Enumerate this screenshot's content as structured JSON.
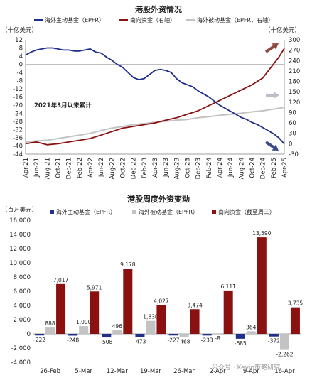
{
  "colors": {
    "navy": "#1f2f8a",
    "darkred": "#8b1010",
    "gray": "#c3c3c3",
    "neg_label": "#d0191b",
    "axis": "#7f7f7f"
  },
  "watermark": "公众号 · Kevin策略研究",
  "chart_data": [
    {
      "type": "line",
      "title": "港股外资情况",
      "left_unit": "（十亿美元）",
      "right_unit": "（十亿美元）",
      "annotation": "2021年3月以来累计",
      "legend": [
        "海外主动基金（EPFR）",
        "南向资金（右轴）",
        "海外被动基金（EPFR，右轴）"
      ],
      "x_ticks": [
        "Apr-21",
        "Jun-21",
        "Aug-21",
        "Oct-21",
        "Dec-21",
        "Feb-22",
        "Apr-22",
        "Jun-22",
        "Aug-22",
        "Oct-22",
        "Dec-22",
        "Feb-23",
        "Apr-23",
        "Jun-23",
        "Aug-23",
        "Oct-23",
        "Dec-23",
        "Feb-24",
        "Apr-24",
        "Jun-24",
        "Aug-24",
        "Oct-24",
        "Dec-24",
        "Feb-25",
        "Apr-25"
      ],
      "left_axis": {
        "min": -44,
        "max": 12,
        "ticks": [
          12,
          8,
          4,
          0,
          -4,
          -8,
          -12,
          -16,
          -20,
          -24,
          -28,
          -32,
          -36,
          -40,
          -44
        ]
      },
      "right_axis": {
        "min": -30,
        "max": 300,
        "ticks": [
          300,
          270,
          240,
          210,
          180,
          150,
          120,
          90,
          60,
          30,
          0,
          -30
        ]
      },
      "series": [
        {
          "name": "海外主动基金（EPFR）",
          "axis": "left",
          "color": "#1f2f8a",
          "t": [
            0,
            1,
            2,
            3,
            4,
            5,
            6,
            7,
            8,
            9,
            10,
            11,
            12,
            13,
            14,
            15,
            16,
            17,
            18,
            19,
            20,
            21,
            22,
            23,
            24,
            25,
            26,
            27,
            28,
            29,
            30,
            31,
            32,
            33,
            34,
            35,
            36,
            37,
            38,
            39,
            40,
            41,
            42,
            43,
            44,
            45,
            46,
            47,
            48
          ],
          "y": [
            4.5,
            6,
            7,
            7.5,
            8,
            8,
            7.5,
            7,
            7,
            6.5,
            6.5,
            7,
            7.5,
            6,
            5.5,
            3.5,
            2,
            0,
            -1.5,
            -4,
            -6.5,
            -7.5,
            -7,
            -5,
            -3,
            -2.5,
            -3,
            -4,
            -7,
            -9,
            -10,
            -11,
            -13,
            -14.5,
            -16,
            -18,
            -20,
            -21.5,
            -23,
            -24.5,
            -26,
            -27,
            -28.5,
            -29.5,
            -31,
            -32.5,
            -34,
            -36,
            -39
          ]
        },
        {
          "name": "南向资金（右轴）",
          "axis": "right",
          "color": "#8b1010",
          "t": [
            0,
            2,
            4,
            6,
            8,
            10,
            12,
            14,
            16,
            18,
            20,
            22,
            24,
            26,
            28,
            30,
            32,
            34,
            36,
            38,
            40,
            42,
            44,
            45,
            46,
            47,
            48
          ],
          "y": [
            0,
            5,
            -3,
            0,
            5,
            10,
            15,
            25,
            35,
            45,
            50,
            55,
            60,
            68,
            75,
            85,
            95,
            110,
            125,
            140,
            155,
            170,
            190,
            210,
            230,
            250,
            275
          ]
        },
        {
          "name": "海外被动基金（EPFR，右轴）",
          "axis": "right",
          "color": "#c3c3c3",
          "t": [
            0,
            2,
            4,
            6,
            8,
            10,
            12,
            14,
            16,
            18,
            20,
            22,
            24,
            26,
            28,
            30,
            32,
            34,
            36,
            38,
            40,
            42,
            44,
            46,
            48
          ],
          "y": [
            5,
            8,
            10,
            15,
            20,
            25,
            30,
            38,
            45,
            50,
            55,
            58,
            62,
            65,
            68,
            70,
            75,
            78,
            82,
            85,
            88,
            92,
            95,
            100,
            105
          ]
        }
      ]
    },
    {
      "type": "bar",
      "title": "港股周度外资变动",
      "unit": "（百万美元）",
      "legend": [
        "海外主动基金（EPFR）",
        "海外被动基金（EPFR）",
        "南向资金（截至周三）"
      ],
      "categories": [
        "26-Feb",
        "5-Mar",
        "12-Mar",
        "19-Mar",
        "26-Mar",
        "2-Apr",
        "9-Apr",
        "16-Apr"
      ],
      "ylim": [
        -4000,
        16000
      ],
      "y_ticks": [
        "16,000",
        "14,000",
        "12,000",
        "10,000",
        "8,000",
        "6,000",
        "4,000",
        "2,000",
        "0",
        "-2,000",
        "-4,000"
      ],
      "series": [
        {
          "name": "海外主动基金（EPFR）",
          "color": "#1f2f8a",
          "values": [
            -222,
            -248,
            -508,
            -473,
            -227,
            -233,
            -685,
            -372
          ],
          "labels": [
            "-222",
            "-248",
            "-508",
            "-473",
            "-227",
            "-233",
            "-685",
            "-372"
          ]
        },
        {
          "name": "海外被动基金（EPFR）",
          "color": "#c3c3c3",
          "values": [
            888,
            1090,
            496,
            1830,
            -468,
            -8,
            364,
            -2262
          ],
          "labels": [
            "888",
            "1,090",
            "496",
            "1,830",
            "-468",
            "-8",
            "364",
            "-2,262"
          ]
        },
        {
          "name": "南向资金（截至周三）",
          "color": "#8b1010",
          "values": [
            7017,
            5971,
            9178,
            4027,
            3474,
            6111,
            13590,
            3735
          ],
          "labels": [
            "7,017",
            "5,971",
            "9,178",
            "4,027",
            "3,474",
            "6,111",
            "13,590",
            "3,735"
          ]
        }
      ]
    }
  ]
}
